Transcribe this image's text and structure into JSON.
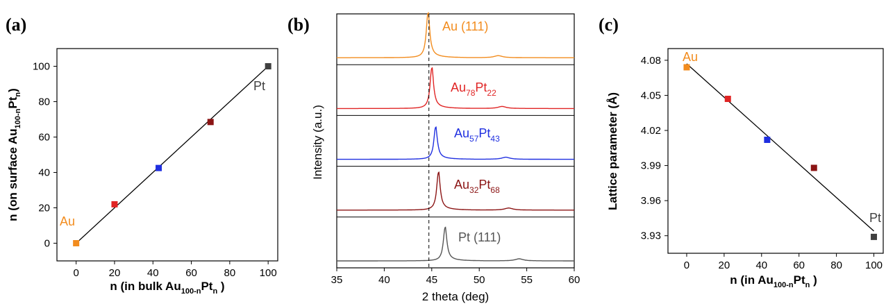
{
  "chart_data": [
    {
      "panel": "(a)",
      "type": "scatter",
      "xlabel": {
        "main": "n (in bulk Au",
        "sub": "100-n",
        "main2": "Pt",
        "sub2": "n",
        "tail": " )"
      },
      "ylabel": {
        "main": "n (on surface Au",
        "sub": "100-n",
        "main2": "Pt",
        "sub2": "n",
        "tail": ")"
      },
      "xlim": [
        -10,
        105
      ],
      "ylim": [
        -10,
        110
      ],
      "xticks": [
        0,
        20,
        40,
        60,
        80,
        100
      ],
      "yticks": [
        0,
        20,
        40,
        60,
        80,
        100
      ],
      "points": [
        {
          "x": 0,
          "y": 0,
          "color": "#f28c1e"
        },
        {
          "x": 20,
          "y": 22,
          "color": "#e02424"
        },
        {
          "x": 43,
          "y": 42.5,
          "color": "#1f2fe0"
        },
        {
          "x": 70,
          "y": 68.5,
          "color": "#8b1414"
        },
        {
          "x": 100,
          "y": 100,
          "color": "#404040"
        }
      ],
      "fit_line": [
        [
          0,
          0
        ],
        [
          100,
          100
        ]
      ],
      "annotations": [
        {
          "text": "Au",
          "color": "#f28c1e"
        },
        {
          "text": "Pt",
          "color": "#404040"
        }
      ]
    },
    {
      "panel": "(b)",
      "type": "line",
      "xlabel": "2 theta (deg)",
      "ylabel": "Intensity (a.u.)",
      "xlim": [
        35,
        60
      ],
      "xticks": [
        35,
        40,
        45,
        50,
        55,
        60
      ],
      "reference_line_x": 44.7,
      "series": [
        {
          "name": "Au (111)",
          "color": "#f28c1e",
          "peak": 44.6,
          "minor_peak": 52.0
        },
        {
          "name": "Au78Pt22",
          "label_main": "Au",
          "label_sub": "78",
          "label_main2": "Pt",
          "label_sub2": "22",
          "color": "#e02424",
          "peak": 45.0,
          "minor_peak": 52.4
        },
        {
          "name": "Au57Pt43",
          "label_main": "Au",
          "label_sub": "57",
          "label_main2": "Pt",
          "label_sub2": "43",
          "color": "#1f2fe0",
          "peak": 45.4,
          "minor_peak": 52.8
        },
        {
          "name": "Au32Pt68",
          "label_main": "Au",
          "label_sub": "32",
          "label_main2": "Pt",
          "label_sub2": "68",
          "color": "#8b1414",
          "peak": 45.7,
          "minor_peak": 53.1
        },
        {
          "name": "Pt (111)",
          "color": "#555555",
          "peak": 46.4,
          "minor_peak": 54.2
        }
      ]
    },
    {
      "panel": "(c)",
      "type": "scatter",
      "xlabel": {
        "main": "n (in  Au",
        "sub": "100-n",
        "main2": "Pt",
        "sub2": "n",
        "tail": " )"
      },
      "ylabel": "Lattice parameter (Å)",
      "xlim": [
        -10,
        105
      ],
      "ylim": [
        3.915,
        4.09
      ],
      "xticks": [
        0,
        20,
        40,
        60,
        80,
        100
      ],
      "yticks": [
        3.93,
        3.96,
        3.99,
        4.02,
        4.05,
        4.08
      ],
      "ytick_labels": [
        "3.93",
        "3.96",
        "3.99",
        "4.02",
        "4.05",
        "4.08"
      ],
      "points": [
        {
          "x": 0,
          "y": 4.074,
          "color": "#f28c1e"
        },
        {
          "x": 22,
          "y": 4.047,
          "color": "#e02424"
        },
        {
          "x": 43,
          "y": 4.012,
          "color": "#1f2fe0"
        },
        {
          "x": 68,
          "y": 3.988,
          "color": "#8b1414"
        },
        {
          "x": 100,
          "y": 3.929,
          "color": "#404040"
        }
      ],
      "fit_line": [
        [
          0,
          4.077
        ],
        [
          100,
          3.934
        ]
      ],
      "annotations": [
        {
          "text": "Au",
          "color": "#f28c1e"
        },
        {
          "text": "Pt",
          "color": "#404040"
        }
      ]
    }
  ]
}
